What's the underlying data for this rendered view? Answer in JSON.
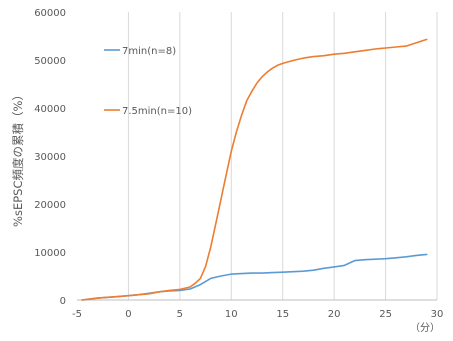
{
  "chart_data": {
    "type": "line",
    "title": "",
    "ylabel": "%sEPSC頻度の累積（%）",
    "xlabel": "（分）",
    "xlim": [
      -5,
      30
    ],
    "ylim": [
      0,
      60000
    ],
    "xticks": [
      -5,
      0,
      5,
      10,
      15,
      20,
      25,
      30
    ],
    "yticks": [
      0,
      10000,
      20000,
      30000,
      40000,
      50000,
      60000
    ],
    "grid": "vertical",
    "legend_position": "inside-left",
    "series": [
      {
        "name": "7min(n=8)",
        "color": "#5b9bd5",
        "x": [
          -4.5,
          -3,
          -1,
          0,
          1,
          2,
          3,
          4,
          5,
          6,
          7,
          8,
          9,
          10,
          11,
          12,
          13,
          14,
          15,
          16,
          17,
          18,
          19,
          20,
          21,
          22,
          23,
          24,
          25,
          26,
          27,
          28,
          29
        ],
        "y": [
          0,
          400,
          700,
          900,
          1100,
          1400,
          1700,
          1900,
          2000,
          2300,
          3200,
          4500,
          5000,
          5400,
          5500,
          5600,
          5600,
          5700,
          5800,
          5900,
          6000,
          6200,
          6600,
          6900,
          7200,
          8200,
          8400,
          8500,
          8600,
          8800,
          9000,
          9300,
          9500
        ]
      },
      {
        "name": "7.5min(n=10)",
        "color": "#ed7d31",
        "x": [
          -4.5,
          -3,
          -1,
          0,
          1,
          2,
          3,
          4,
          5,
          6,
          6.5,
          7,
          7.5,
          8,
          8.5,
          9,
          9.5,
          10,
          10.5,
          11,
          11.5,
          12,
          12.5,
          13,
          13.5,
          14,
          14.5,
          15,
          16,
          17,
          18,
          19,
          20,
          21,
          22,
          23,
          24,
          25,
          26,
          27,
          28,
          29
        ],
        "y": [
          0,
          400,
          700,
          900,
          1100,
          1300,
          1700,
          2000,
          2200,
          2700,
          3500,
          4500,
          7000,
          11000,
          16000,
          21000,
          26000,
          31000,
          35000,
          38500,
          41500,
          43500,
          45200,
          46500,
          47500,
          48300,
          48900,
          49300,
          49900,
          50400,
          50700,
          50900,
          51200,
          51400,
          51700,
          52000,
          52300,
          52500,
          52700,
          52900,
          53600,
          54300
        ]
      }
    ]
  }
}
